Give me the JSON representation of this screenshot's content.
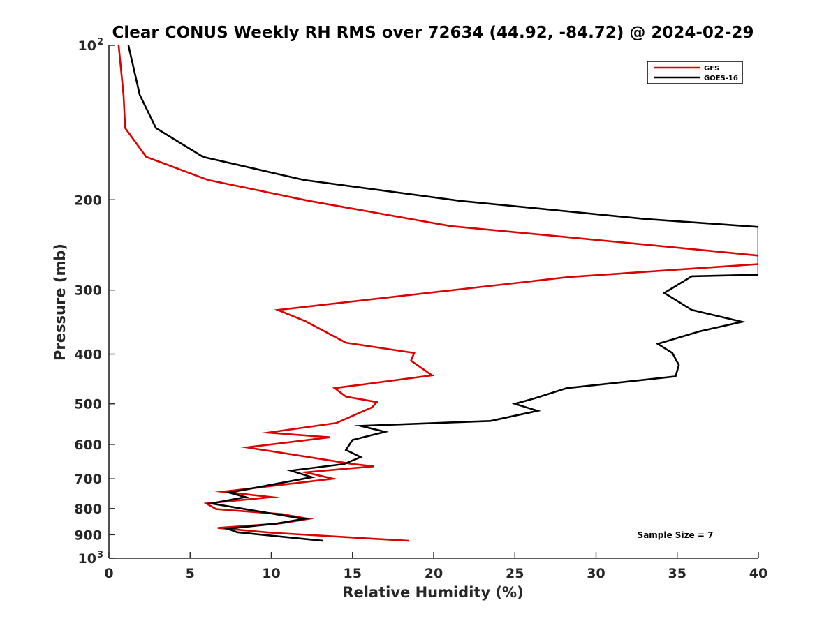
{
  "chart_data": {
    "type": "line",
    "title": "Clear CONUS Weekly RH RMS over 72634 (44.92, -84.72) @ 2024-02-29",
    "xlabel": "Relative Humidity (%)",
    "ylabel": "Pressure (mb)",
    "xlim": [
      0,
      40
    ],
    "ylim": [
      100,
      1000
    ],
    "yscale": "log",
    "y_reversed": true,
    "xticks": [
      0,
      5,
      10,
      15,
      20,
      25,
      30,
      35,
      40
    ],
    "yticks": [
      {
        "value": 100,
        "label": "10",
        "sup": "2"
      },
      {
        "value": 200,
        "label": "200",
        "sup": ""
      },
      {
        "value": 300,
        "label": "300",
        "sup": ""
      },
      {
        "value": 400,
        "label": "400",
        "sup": ""
      },
      {
        "value": 500,
        "label": "500",
        "sup": ""
      },
      {
        "value": 600,
        "label": "600",
        "sup": ""
      },
      {
        "value": 700,
        "label": "700",
        "sup": ""
      },
      {
        "value": 800,
        "label": "800",
        "sup": ""
      },
      {
        "value": 900,
        "label": "900",
        "sup": ""
      },
      {
        "value": 1000,
        "label": "10",
        "sup": "3"
      }
    ],
    "legend_position": "top-right",
    "annotation": "Sample Size = 7",
    "series": [
      {
        "name": "GFS",
        "color": "#dd0000",
        "points": [
          [
            0.6,
            100
          ],
          [
            0.9,
            125
          ],
          [
            1.0,
            145
          ],
          [
            2.3,
            165
          ],
          [
            6.1,
            183
          ],
          [
            12.3,
            201
          ],
          [
            21.0,
            225
          ],
          [
            35.0,
            248
          ],
          [
            40.0,
            257
          ],
          [
            40.0,
            267
          ],
          [
            28.3,
            283
          ],
          [
            10.4,
            328
          ],
          [
            12.1,
            345
          ],
          [
            14.6,
            380
          ],
          [
            18.8,
            398
          ],
          [
            18.6,
            412
          ],
          [
            19.9,
            440
          ],
          [
            13.9,
            466
          ],
          [
            14.6,
            484
          ],
          [
            16.5,
            496
          ],
          [
            16.2,
            508
          ],
          [
            14.0,
            545
          ],
          [
            9.8,
            569
          ],
          [
            13.6,
            581
          ],
          [
            8.5,
            608
          ],
          [
            15.0,
            655
          ],
          [
            16.3,
            662
          ],
          [
            12.1,
            680
          ],
          [
            13.8,
            700
          ],
          [
            7.0,
            742
          ],
          [
            10.0,
            760
          ],
          [
            6.0,
            782
          ],
          [
            6.6,
            802
          ],
          [
            10.6,
            820
          ],
          [
            12.3,
            838
          ],
          [
            10.6,
            855
          ],
          [
            6.7,
            873
          ],
          [
            10.0,
            892
          ],
          [
            18.5,
            925
          ]
        ]
      },
      {
        "name": "GOES-16",
        "color": "#000000",
        "points": [
          [
            1.2,
            100
          ],
          [
            1.9,
            125
          ],
          [
            2.9,
            145
          ],
          [
            5.8,
            165
          ],
          [
            12.0,
            183
          ],
          [
            21.6,
            201
          ],
          [
            33.0,
            218
          ],
          [
            40.0,
            226
          ],
          [
            40.0,
            280
          ],
          [
            35.9,
            282
          ],
          [
            34.2,
            304
          ],
          [
            35.9,
            328
          ],
          [
            39.0,
            346
          ],
          [
            36.4,
            361
          ],
          [
            33.8,
            382
          ],
          [
            34.7,
            398
          ],
          [
            35.1,
            420
          ],
          [
            34.9,
            442
          ],
          [
            28.2,
            466
          ],
          [
            26.2,
            488
          ],
          [
            25.0,
            500
          ],
          [
            26.4,
            516
          ],
          [
            23.5,
            540
          ],
          [
            15.5,
            552
          ],
          [
            17.0,
            567
          ],
          [
            15.0,
            588
          ],
          [
            14.6,
            615
          ],
          [
            15.5,
            635
          ],
          [
            14.5,
            655
          ],
          [
            11.2,
            675
          ],
          [
            12.5,
            695
          ],
          [
            7.4,
            745
          ],
          [
            8.4,
            760
          ],
          [
            6.3,
            782
          ],
          [
            10.0,
            818
          ],
          [
            12.0,
            838
          ],
          [
            10.3,
            856
          ],
          [
            7.3,
            876
          ],
          [
            7.9,
            890
          ],
          [
            13.2,
            925
          ]
        ]
      }
    ]
  }
}
